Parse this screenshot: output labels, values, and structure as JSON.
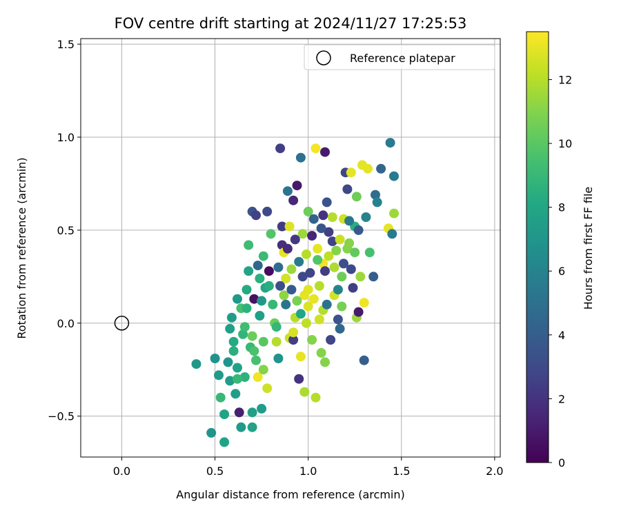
{
  "chart_data": {
    "type": "scatter",
    "title": "FOV centre drift starting at 2024/11/27 17:25:53",
    "xlabel": "Angular distance from reference (arcmin)",
    "ylabel": "Rotation from reference (arcmin)",
    "xlim": [
      -0.22,
      2.03
    ],
    "ylim": [
      -0.72,
      1.53
    ],
    "x_ticks": [
      0.0,
      0.5,
      1.0,
      1.5,
      2.0
    ],
    "x_tick_labels": [
      "0.0",
      "0.5",
      "1.0",
      "1.5",
      "2.0"
    ],
    "y_ticks": [
      -0.5,
      0.0,
      0.5,
      1.0,
      1.5
    ],
    "y_tick_labels": [
      "−0.5",
      "0.0",
      "0.5",
      "1.0",
      "1.5"
    ],
    "grid": true,
    "legend": {
      "placement": "top-right",
      "entries": [
        {
          "label": "Reference platepar",
          "marker": "open-circle"
        }
      ]
    },
    "reference_point": {
      "x": 0.0,
      "y": 0.0
    },
    "colorbar": {
      "label": "Hours from first FF file",
      "colormap": "viridis",
      "range": [
        0,
        13.5
      ],
      "ticks": [
        0,
        2,
        4,
        6,
        8,
        10,
        12
      ],
      "tick_labels": [
        "0",
        "2",
        "4",
        "6",
        "8",
        "10",
        "12"
      ]
    },
    "points": [
      {
        "x": 0.4,
        "y": -0.22,
        "t": 7.2
      },
      {
        "x": 0.48,
        "y": -0.59,
        "t": 7.0
      },
      {
        "x": 0.5,
        "y": -0.19,
        "t": 6.8
      },
      {
        "x": 0.52,
        "y": -0.28,
        "t": 7.3
      },
      {
        "x": 0.53,
        "y": -0.4,
        "t": 9.0
      },
      {
        "x": 0.55,
        "y": -0.64,
        "t": 7.8
      },
      {
        "x": 0.55,
        "y": -0.49,
        "t": 7.8
      },
      {
        "x": 0.57,
        "y": -0.21,
        "t": 7.0
      },
      {
        "x": 0.58,
        "y": -0.31,
        "t": 7.4
      },
      {
        "x": 0.58,
        "y": -0.03,
        "t": 7.6
      },
      {
        "x": 0.59,
        "y": 0.03,
        "t": 7.4
      },
      {
        "x": 0.6,
        "y": -0.1,
        "t": 8.2
      },
      {
        "x": 0.6,
        "y": -0.15,
        "t": 8.5
      },
      {
        "x": 0.61,
        "y": -0.38,
        "t": 7.5
      },
      {
        "x": 0.62,
        "y": 0.13,
        "t": 7.2
      },
      {
        "x": 0.62,
        "y": -0.24,
        "t": 7.8
      },
      {
        "x": 0.63,
        "y": -0.48,
        "t": 1.2
      },
      {
        "x": 0.64,
        "y": 0.08,
        "t": 9.5
      },
      {
        "x": 0.64,
        "y": -0.56,
        "t": 7.3
      },
      {
        "x": 0.65,
        "y": -0.06,
        "t": 8.8
      },
      {
        "x": 0.66,
        "y": -0.29,
        "t": 8.6
      },
      {
        "x": 0.67,
        "y": 0.18,
        "t": 8.2
      },
      {
        "x": 0.68,
        "y": 0.28,
        "t": 7.8
      },
      {
        "x": 0.68,
        "y": 0.42,
        "t": 9.2
      },
      {
        "x": 0.69,
        "y": -0.13,
        "t": 9.0
      },
      {
        "x": 0.7,
        "y": -0.48,
        "t": 7.6
      },
      {
        "x": 0.7,
        "y": -0.56,
        "t": 7.8
      },
      {
        "x": 0.7,
        "y": 0.6,
        "t": 3.4
      },
      {
        "x": 0.71,
        "y": 0.13,
        "t": 0.6
      },
      {
        "x": 0.72,
        "y": -0.2,
        "t": 9.5
      },
      {
        "x": 0.72,
        "y": 0.58,
        "t": 2.6
      },
      {
        "x": 0.73,
        "y": -0.29,
        "t": 13.2
      },
      {
        "x": 0.73,
        "y": 0.31,
        "t": 4.5
      },
      {
        "x": 0.74,
        "y": 0.24,
        "t": 8.5
      },
      {
        "x": 0.75,
        "y": -0.46,
        "t": 7.4
      },
      {
        "x": 0.75,
        "y": 0.12,
        "t": 7.2
      },
      {
        "x": 0.76,
        "y": -0.1,
        "t": 10.0
      },
      {
        "x": 0.76,
        "y": -0.25,
        "t": 11.0
      },
      {
        "x": 0.77,
        "y": 0.19,
        "t": 8.0
      },
      {
        "x": 0.78,
        "y": -0.35,
        "t": 12.5
      },
      {
        "x": 0.78,
        "y": 0.6,
        "t": 3.0
      },
      {
        "x": 0.79,
        "y": 0.28,
        "t": 0.4
      },
      {
        "x": 0.8,
        "y": 0.48,
        "t": 9.8
      },
      {
        "x": 0.82,
        "y": 0.0,
        "t": 10.5
      },
      {
        "x": 0.83,
        "y": -0.1,
        "t": 12.0
      },
      {
        "x": 0.84,
        "y": -0.19,
        "t": 6.9
      },
      {
        "x": 0.84,
        "y": 0.3,
        "t": 4.8
      },
      {
        "x": 0.85,
        "y": 0.94,
        "t": 2.5
      },
      {
        "x": 0.86,
        "y": 0.52,
        "t": 2.3
      },
      {
        "x": 0.86,
        "y": 0.42,
        "t": 1.8
      },
      {
        "x": 0.87,
        "y": 0.38,
        "t": 13.0
      },
      {
        "x": 0.88,
        "y": 0.24,
        "t": 12.6
      },
      {
        "x": 0.88,
        "y": 0.1,
        "t": 5.2
      },
      {
        "x": 0.89,
        "y": 0.71,
        "t": 5.2
      },
      {
        "x": 0.9,
        "y": -0.08,
        "t": 12.4
      },
      {
        "x": 0.9,
        "y": 0.52,
        "t": 12.8
      },
      {
        "x": 0.91,
        "y": 0.29,
        "t": 11.5
      },
      {
        "x": 0.92,
        "y": 0.66,
        "t": 1.5
      },
      {
        "x": 0.92,
        "y": -0.09,
        "t": 2.5
      },
      {
        "x": 0.93,
        "y": 0.03,
        "t": 12.0
      },
      {
        "x": 0.94,
        "y": 0.74,
        "t": 0.9
      },
      {
        "x": 0.95,
        "y": 0.33,
        "t": 5.5
      },
      {
        "x": 0.95,
        "y": -0.3,
        "t": 2.0
      },
      {
        "x": 0.96,
        "y": 0.89,
        "t": 5.0
      },
      {
        "x": 0.96,
        "y": -0.18,
        "t": 13.0
      },
      {
        "x": 0.97,
        "y": 0.48,
        "t": 11.5
      },
      {
        "x": 0.98,
        "y": 0.15,
        "t": 13.0
      },
      {
        "x": 0.98,
        "y": -0.37,
        "t": 11.8
      },
      {
        "x": 0.99,
        "y": 0.0,
        "t": 12.2
      },
      {
        "x": 1.0,
        "y": 0.6,
        "t": 10.5
      },
      {
        "x": 1.01,
        "y": 0.27,
        "t": 2.8
      },
      {
        "x": 1.02,
        "y": -0.09,
        "t": 11.0
      },
      {
        "x": 1.03,
        "y": 0.56,
        "t": 4.2
      },
      {
        "x": 1.04,
        "y": 0.94,
        "t": 13.3
      },
      {
        "x": 1.04,
        "y": -0.4,
        "t": 12.0
      },
      {
        "x": 1.05,
        "y": 0.4,
        "t": 13.0
      },
      {
        "x": 1.06,
        "y": 0.2,
        "t": 12.0
      },
      {
        "x": 1.07,
        "y": -0.16,
        "t": 11.0
      },
      {
        "x": 1.08,
        "y": 0.32,
        "t": 13.2
      },
      {
        "x": 1.08,
        "y": 0.07,
        "t": 12.0
      },
      {
        "x": 1.09,
        "y": 0.92,
        "t": 1.0
      },
      {
        "x": 1.09,
        "y": -0.21,
        "t": 11.0
      },
      {
        "x": 1.1,
        "y": 0.65,
        "t": 3.5
      },
      {
        "x": 1.11,
        "y": 0.49,
        "t": 2.5
      },
      {
        "x": 1.12,
        "y": -0.09,
        "t": 2.8
      },
      {
        "x": 1.13,
        "y": 0.57,
        "t": 12.0
      },
      {
        "x": 1.14,
        "y": 0.15,
        "t": 12.6
      },
      {
        "x": 1.15,
        "y": 0.39,
        "t": 11.0
      },
      {
        "x": 1.16,
        "y": 0.02,
        "t": 3.5
      },
      {
        "x": 1.17,
        "y": -0.03,
        "t": 4.5
      },
      {
        "x": 1.18,
        "y": 0.25,
        "t": 10.5
      },
      {
        "x": 1.19,
        "y": 0.56,
        "t": 12.5
      },
      {
        "x": 1.2,
        "y": 0.81,
        "t": 2.8
      },
      {
        "x": 1.21,
        "y": 0.72,
        "t": 2.8
      },
      {
        "x": 1.22,
        "y": 0.43,
        "t": 11.0
      },
      {
        "x": 1.23,
        "y": 0.81,
        "t": 13.0
      },
      {
        "x": 1.24,
        "y": 0.19,
        "t": 2.5
      },
      {
        "x": 1.25,
        "y": 0.52,
        "t": 8.5
      },
      {
        "x": 1.26,
        "y": 0.03,
        "t": 11.5
      },
      {
        "x": 1.26,
        "y": 0.68,
        "t": 10.5
      },
      {
        "x": 1.27,
        "y": 0.06,
        "t": 1.0
      },
      {
        "x": 1.28,
        "y": 0.25,
        "t": 11.5
      },
      {
        "x": 1.29,
        "y": 0.85,
        "t": 13.0
      },
      {
        "x": 1.3,
        "y": -0.2,
        "t": 4.0
      },
      {
        "x": 1.3,
        "y": 0.11,
        "t": 13.2
      },
      {
        "x": 1.31,
        "y": 0.57,
        "t": 6.0
      },
      {
        "x": 1.32,
        "y": 0.83,
        "t": 13.0
      },
      {
        "x": 1.33,
        "y": 0.38,
        "t": 9.5
      },
      {
        "x": 1.35,
        "y": 0.25,
        "t": 4.0
      },
      {
        "x": 1.36,
        "y": 0.69,
        "t": 4.8
      },
      {
        "x": 1.37,
        "y": 0.65,
        "t": 6.0
      },
      {
        "x": 1.39,
        "y": 0.83,
        "t": 4.5
      },
      {
        "x": 1.43,
        "y": 0.51,
        "t": 13.0
      },
      {
        "x": 1.44,
        "y": 0.97,
        "t": 5.5
      },
      {
        "x": 1.45,
        "y": 0.48,
        "t": 5.6
      },
      {
        "x": 1.46,
        "y": 0.59,
        "t": 11.5
      },
      {
        "x": 1.46,
        "y": 0.79,
        "t": 5.5
      },
      {
        "x": 0.62,
        "y": -0.3,
        "t": 9.0
      },
      {
        "x": 0.66,
        "y": -0.02,
        "t": 9.3
      },
      {
        "x": 0.7,
        "y": -0.07,
        "t": 10.4
      },
      {
        "x": 0.74,
        "y": 0.04,
        "t": 7.6
      },
      {
        "x": 0.79,
        "y": 0.2,
        "t": 8.4
      },
      {
        "x": 0.81,
        "y": 0.1,
        "t": 9.0
      },
      {
        "x": 0.85,
        "y": 0.2,
        "t": 3.2
      },
      {
        "x": 0.87,
        "y": 0.15,
        "t": 11.2
      },
      {
        "x": 0.89,
        "y": 0.4,
        "t": 1.7
      },
      {
        "x": 0.91,
        "y": 0.18,
        "t": 3.8
      },
      {
        "x": 0.93,
        "y": 0.45,
        "t": 2.2
      },
      {
        "x": 0.94,
        "y": 0.12,
        "t": 10.8
      },
      {
        "x": 0.96,
        "y": 0.05,
        "t": 8.0
      },
      {
        "x": 0.97,
        "y": 0.25,
        "t": 3.0
      },
      {
        "x": 0.99,
        "y": 0.37,
        "t": 12.0
      },
      {
        "x": 1.0,
        "y": 0.09,
        "t": 12.8
      },
      {
        "x": 1.02,
        "y": 0.47,
        "t": 1.4
      },
      {
        "x": 1.03,
        "y": 0.13,
        "t": 13.0
      },
      {
        "x": 1.05,
        "y": 0.34,
        "t": 9.8
      },
      {
        "x": 1.06,
        "y": 0.02,
        "t": 12.5
      },
      {
        "x": 1.07,
        "y": 0.51,
        "t": 3.6
      },
      {
        "x": 1.09,
        "y": 0.28,
        "t": 2.4
      },
      {
        "x": 1.1,
        "y": 0.1,
        "t": 5.0
      },
      {
        "x": 1.11,
        "y": 0.36,
        "t": 12.2
      },
      {
        "x": 1.13,
        "y": 0.44,
        "t": 2.6
      },
      {
        "x": 1.14,
        "y": 0.3,
        "t": 11.8
      },
      {
        "x": 1.16,
        "y": 0.18,
        "t": 6.0
      },
      {
        "x": 1.17,
        "y": 0.45,
        "t": 12.4
      },
      {
        "x": 1.19,
        "y": 0.32,
        "t": 3.2
      },
      {
        "x": 1.21,
        "y": 0.4,
        "t": 11.0
      },
      {
        "x": 1.23,
        "y": 0.29,
        "t": 2.9
      },
      {
        "x": 1.25,
        "y": 0.38,
        "t": 10.2
      },
      {
        "x": 1.27,
        "y": 0.5,
        "t": 3.8
      },
      {
        "x": 0.67,
        "y": 0.08,
        "t": 8.6
      },
      {
        "x": 0.71,
        "y": -0.15,
        "t": 9.6
      },
      {
        "x": 0.76,
        "y": 0.36,
        "t": 9.1
      },
      {
        "x": 0.83,
        "y": -0.02,
        "t": 8.9
      },
      {
        "x": 0.92,
        "y": -0.05,
        "t": 12.7
      },
      {
        "x": 1.0,
        "y": 0.18,
        "t": 12.9
      },
      {
        "x": 1.08,
        "y": 0.58,
        "t": 2.0
      },
      {
        "x": 1.18,
        "y": 0.09,
        "t": 10.7
      },
      {
        "x": 1.22,
        "y": 0.55,
        "t": 5.4
      }
    ]
  }
}
